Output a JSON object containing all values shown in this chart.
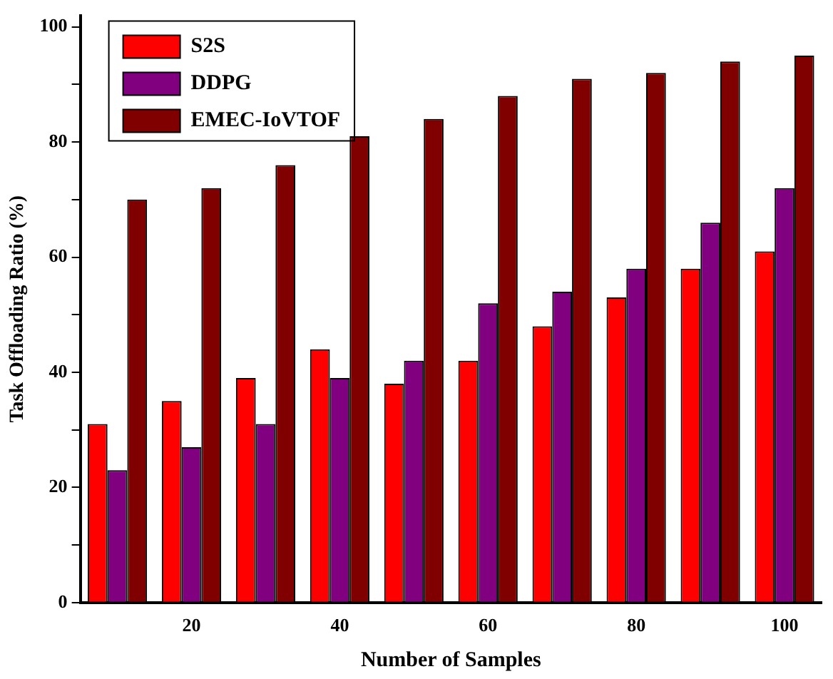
{
  "chart_data": {
    "type": "bar",
    "xlabel": "Number of Samples",
    "ylabel": "Task Offloading Ratio (%)",
    "categories": [
      null,
      "20",
      null,
      "40",
      null,
      "60",
      null,
      "80",
      null,
      "100"
    ],
    "series": [
      {
        "name": "S2S",
        "color": "#ff0000",
        "values": [
          31,
          35,
          39,
          44,
          38,
          42,
          48,
          53,
          58,
          61
        ]
      },
      {
        "name": "DDPG",
        "color": "#800080",
        "values": [
          23,
          27,
          31,
          39,
          42,
          52,
          54,
          58,
          66,
          72
        ]
      },
      {
        "name": "EMEC-IoVTOF",
        "color": "#800000",
        "values": [
          70,
          72,
          76,
          81,
          84,
          88,
          91,
          92,
          94,
          95
        ]
      }
    ],
    "ylim": [
      0,
      102
    ],
    "yticks": [
      0,
      {
        "value": 10,
        "label": null
      },
      20,
      {
        "value": 30,
        "label": null
      },
      40,
      {
        "value": 50,
        "label": null
      },
      60,
      {
        "value": 70,
        "label": null
      },
      80,
      {
        "value": 90,
        "label": null
      },
      100
    ],
    "grid": false,
    "legend": "top left"
  }
}
